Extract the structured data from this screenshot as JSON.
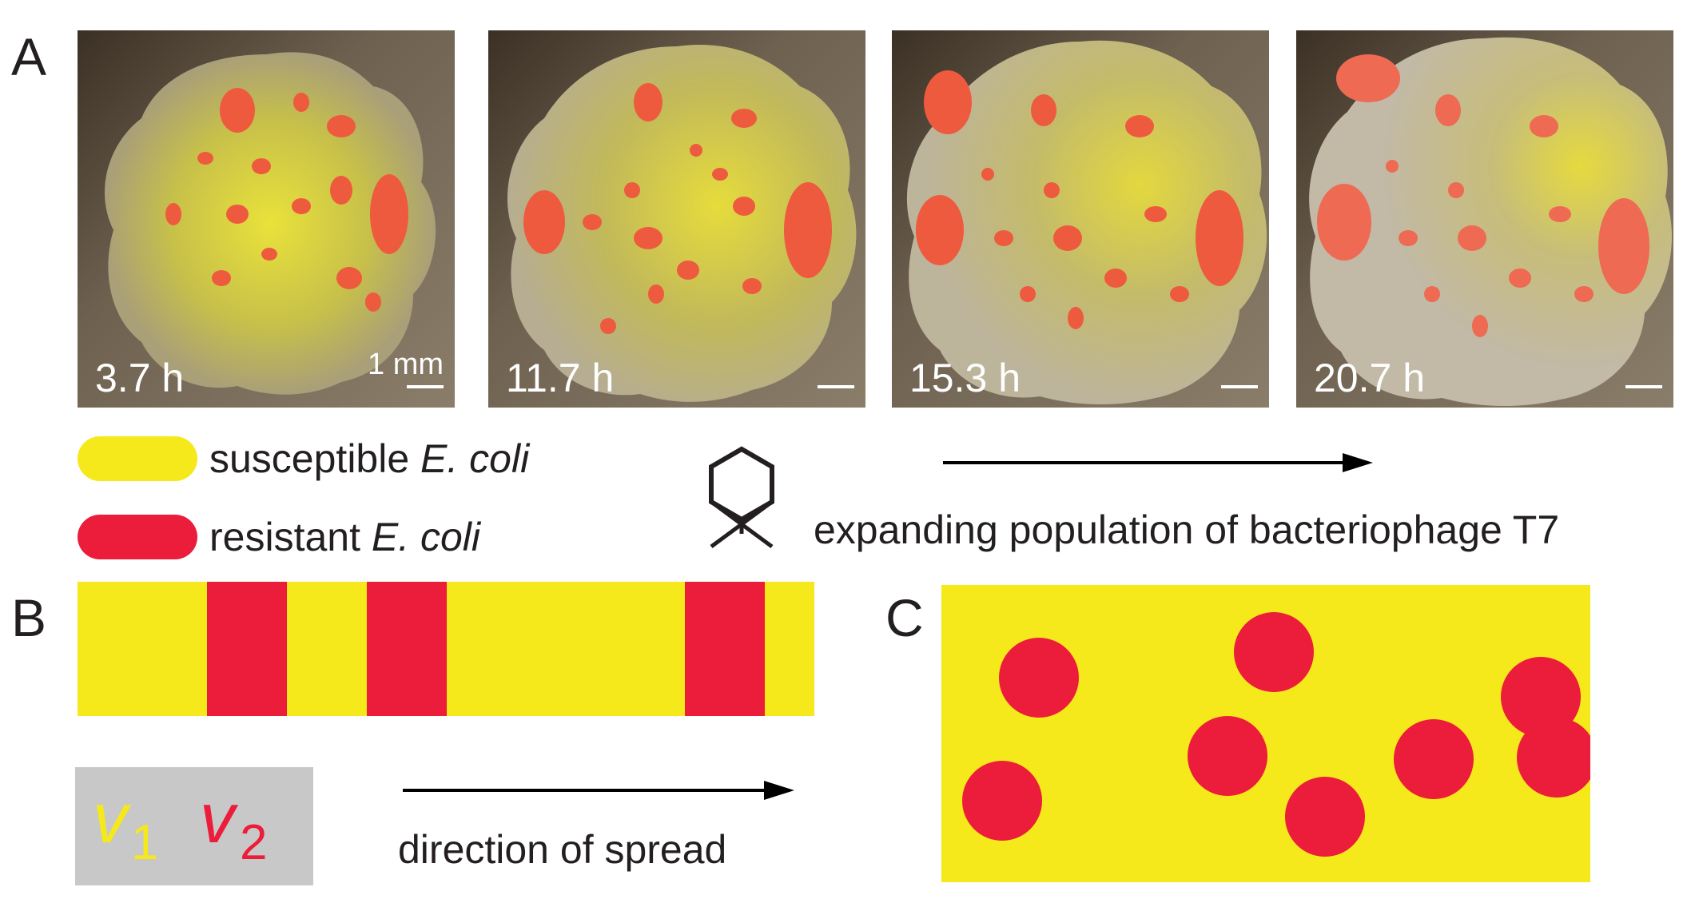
{
  "panel_labels": {
    "a": "A",
    "b": "B",
    "c": "C"
  },
  "photos": [
    {
      "time": "3.7 h",
      "scale_label": "1 mm"
    },
    {
      "time": "11.7 h"
    },
    {
      "time": "15.3 h"
    },
    {
      "time": "20.7 h"
    }
  ],
  "legend": {
    "susceptible": {
      "text": "susceptible ",
      "species": "E. coli",
      "color": "#f5e81b"
    },
    "resistant": {
      "text": "resistant ",
      "species": "E. coli",
      "color": "#ec1c3b"
    }
  },
  "phage": {
    "icon": "bacteriophage-icon",
    "caption": "expanding population of bacteriophage T7"
  },
  "panel_b": {
    "strip_color": "#f5e81b",
    "band_color": "#ec1c3b",
    "direction_caption": "direction of spread",
    "symbols": {
      "v1": "v",
      "v1_sub": "1",
      "v2": "v",
      "v2_sub": "2"
    }
  },
  "panel_c": {
    "background": "#f5e81b",
    "circle_color": "#ec1c3b"
  }
}
